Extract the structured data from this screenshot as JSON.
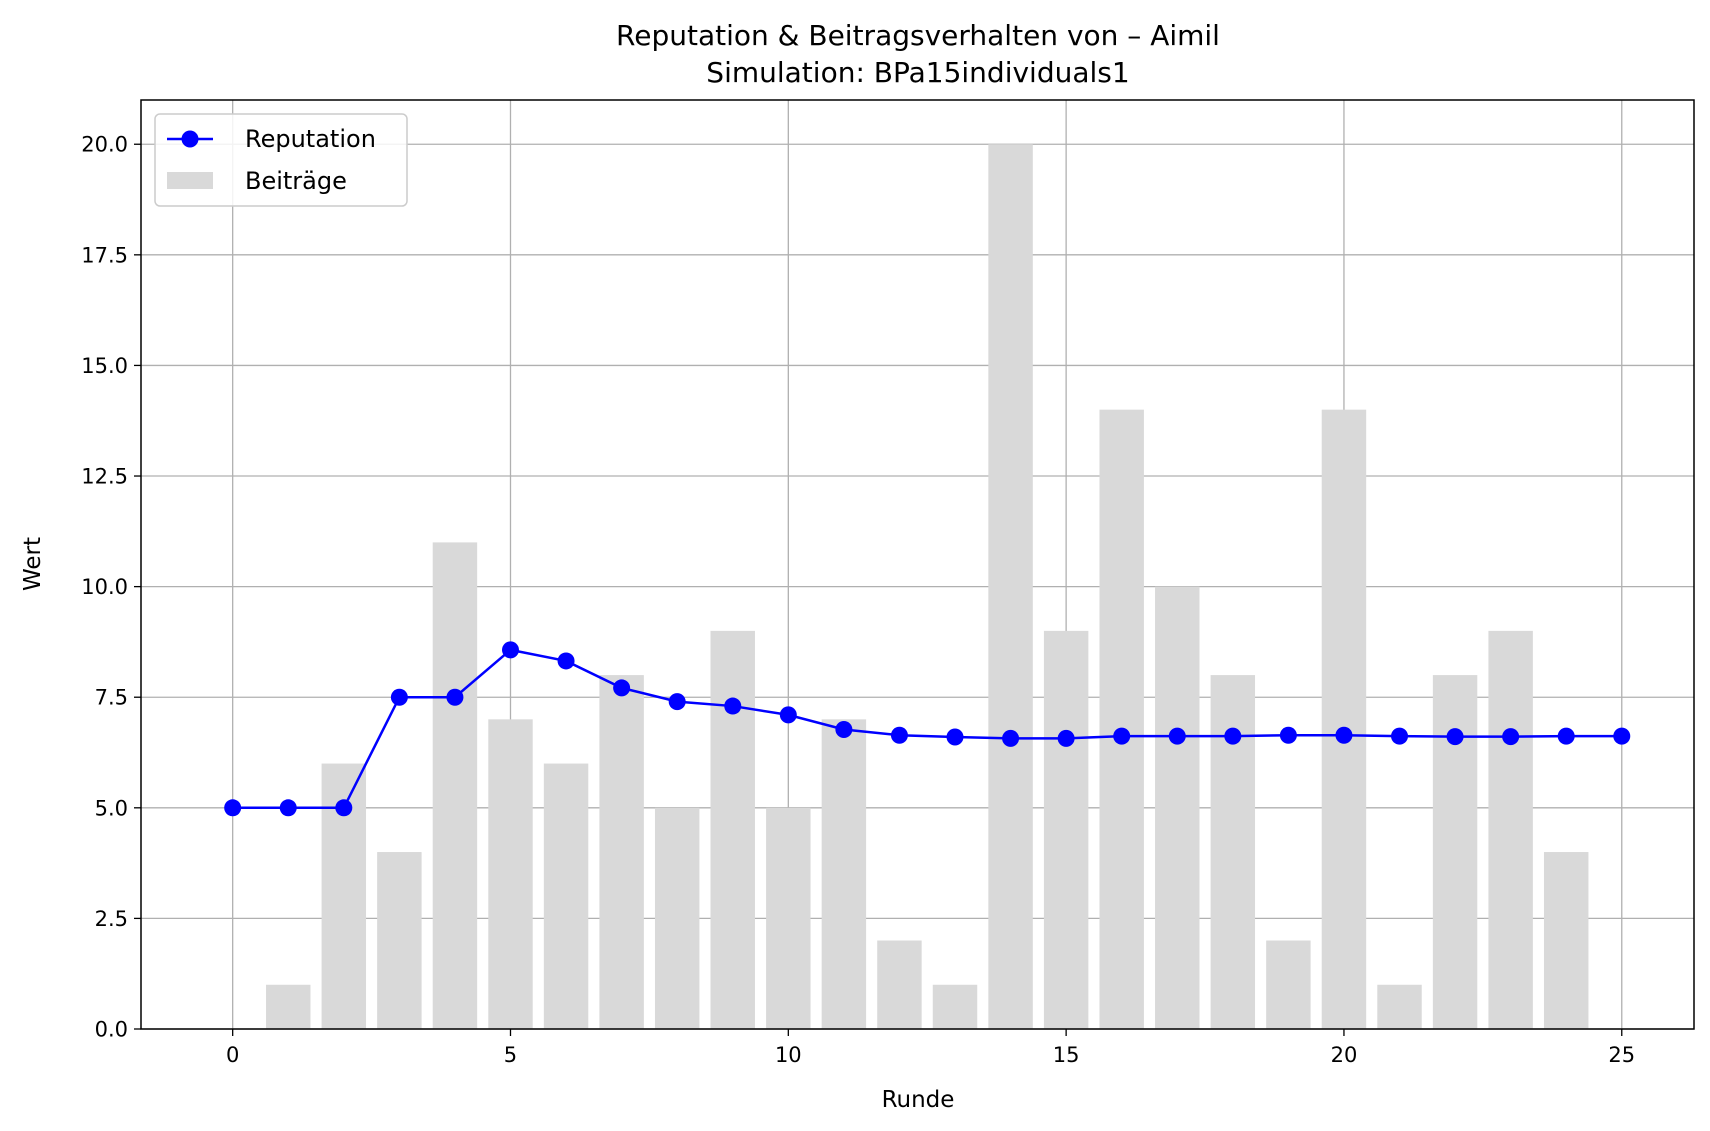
{
  "chart_data": {
    "type": "bar+line",
    "title": "Reputation & Beitragsverhalten von – Aimil",
    "subtitle": "Simulation: BPa15individuals1",
    "xlabel": "Runde",
    "ylabel": "Wert",
    "xlim": [
      -1.65,
      26.3
    ],
    "ylim": [
      0,
      21
    ],
    "x_ticks": [
      0,
      5,
      10,
      15,
      20,
      25
    ],
    "x_tick_labels": [
      "0",
      "5",
      "10",
      "15",
      "20",
      "25"
    ],
    "y_ticks": [
      0,
      2.5,
      5,
      7.5,
      10,
      12.5,
      15,
      17.5,
      20
    ],
    "y_tick_labels": [
      "0.0",
      "2.5",
      "5.0",
      "7.5",
      "10.0",
      "12.5",
      "15.0",
      "17.5",
      "20.0"
    ],
    "grid": true,
    "legend_position": "upper-left",
    "series": [
      {
        "name": "Reputation",
        "type": "line",
        "color": "#0000ff",
        "marker": "circle",
        "x": [
          0,
          1,
          2,
          3,
          4,
          5,
          6,
          7,
          8,
          9,
          10,
          11,
          12,
          13,
          14,
          15,
          16,
          17,
          18,
          19,
          20,
          21,
          22,
          23,
          24,
          25
        ],
        "values": [
          5.0,
          5.0,
          5.0,
          7.5,
          7.5,
          8.57,
          8.32,
          7.71,
          7.4,
          7.3,
          7.1,
          6.77,
          6.64,
          6.6,
          6.57,
          6.57,
          6.62,
          6.62,
          6.62,
          6.64,
          6.64,
          6.62,
          6.61,
          6.61,
          6.62,
          6.62
        ]
      },
      {
        "name": "Beiträge",
        "type": "bar",
        "color": "#d9d9d9",
        "x": [
          1,
          2,
          3,
          4,
          5,
          6,
          7,
          8,
          9,
          10,
          11,
          12,
          13,
          14,
          15,
          16,
          17,
          18,
          19,
          20,
          21,
          22,
          23,
          24
        ],
        "values": [
          1,
          6,
          4,
          11,
          7,
          6,
          8,
          5,
          9,
          5,
          7,
          2,
          1,
          20,
          9,
          14,
          10,
          8,
          2,
          14,
          1,
          8,
          9,
          4
        ]
      }
    ]
  }
}
